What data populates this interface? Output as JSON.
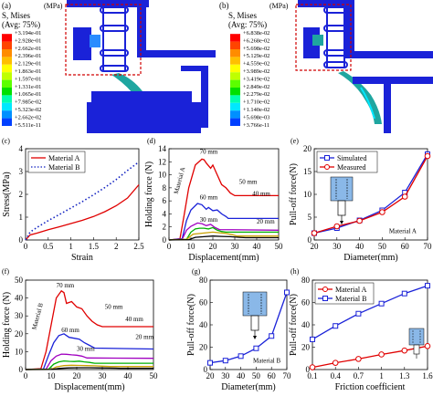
{
  "panel_labels": [
    "(a)",
    "(b)",
    "(c)",
    "(d)",
    "(e)",
    "(f)",
    "(g)",
    "(h)"
  ],
  "fea": [
    {
      "unit": "(MPa)",
      "title1": "S, Mises",
      "title2": "(Avg: 75%)",
      "levels": [
        "+3.194e-01",
        "+2.928e-01",
        "+2.662e-01",
        "+2.396e-01",
        "+2.129e-01",
        "+1.863e-01",
        "+1.597e-01",
        "+1.331e-01",
        "+1.065e-01",
        "+7.985e-02",
        "+5.323e-02",
        "+2.662e-02",
        "+5.511e-11"
      ]
    },
    {
      "unit": "(MPa)",
      "title1": "S, Mises",
      "title2": "(Avg: 75%)",
      "levels": [
        "+6.838e-02",
        "+6.268e-02",
        "+5.698e-02",
        "+5.129e-02",
        "+4.559e-02",
        "+3.989e-02",
        "+3.419e-02",
        "+2.849e-02",
        "+2.279e-02",
        "+1.710e-02",
        "+1.140e-02",
        "+5.698e-03",
        "+3.766e-11"
      ]
    }
  ],
  "colorbar_colors": [
    "#ff0000",
    "#ff4400",
    "#ff8c00",
    "#ffbf00",
    "#ffff00",
    "#bfff00",
    "#5cff00",
    "#00e000",
    "#00ffb0",
    "#00e8ff",
    "#0090ff",
    "#0040ff",
    "#0000ff"
  ],
  "colors": {
    "mat_a": "#e00000",
    "mat_b": "#1020c0",
    "mesh": "#1a22d8"
  },
  "chart_data": [
    {
      "id": "c",
      "type": "line",
      "xlabel": "Strain",
      "ylabel": "Stress(MPa)",
      "xlim": [
        0,
        2.5
      ],
      "ylim": [
        0,
        4
      ],
      "xticks": [
        "0",
        "0.5",
        "1",
        "1.5",
        "2",
        "2.5"
      ],
      "yticks": [
        "0",
        "1",
        "2",
        "3",
        "4"
      ],
      "legend": "top-left",
      "series": [
        {
          "name": "Material A",
          "style": "solid",
          "x": [
            0,
            0.1,
            0.25,
            0.5,
            0.75,
            1,
            1.25,
            1.5,
            1.75,
            2,
            2.25,
            2.5
          ],
          "y": [
            0,
            0.22,
            0.3,
            0.45,
            0.58,
            0.72,
            0.86,
            1.03,
            1.24,
            1.5,
            1.84,
            2.42
          ]
        },
        {
          "name": "Material B",
          "style": "dotted",
          "x": [
            0,
            0.1,
            0.25,
            0.5,
            0.75,
            1,
            1.25,
            1.5,
            1.75,
            2,
            2.25,
            2.5
          ],
          "y": [
            0,
            0.35,
            0.55,
            0.85,
            1.12,
            1.4,
            1.68,
            1.98,
            2.3,
            2.65,
            3.05,
            3.42
          ]
        }
      ]
    },
    {
      "id": "d",
      "type": "line",
      "xlabel": "Displacement(mm)",
      "ylabel": "Holding force (N)",
      "xlim": [
        0,
        50
      ],
      "ylim": [
        0,
        14
      ],
      "xticks": [
        "0",
        "10",
        "20",
        "30",
        "40",
        "50"
      ],
      "yticks": [
        "0",
        "2",
        "4",
        "6",
        "8",
        "10",
        "12",
        "14"
      ],
      "annotation": "Material A",
      "series": [
        {
          "name": "70 mm",
          "color": "#e00000",
          "x": [
            0,
            5,
            7,
            9,
            12,
            15,
            16,
            17,
            19,
            20,
            22,
            24,
            26,
            28,
            30,
            50
          ],
          "y": [
            0,
            0.2,
            4,
            8,
            11.5,
            12.4,
            12.3,
            11.8,
            11,
            11.5,
            10,
            8.5,
            8,
            7.2,
            6.8,
            6.8
          ]
        },
        {
          "name": "60 mm",
          "color": "#1a22d8",
          "x": [
            0,
            6,
            8,
            10,
            13,
            15,
            17,
            18,
            20,
            22,
            24,
            26,
            27,
            50
          ],
          "y": [
            0,
            0.2,
            3,
            4.6,
            5.6,
            5.4,
            4.7,
            5,
            4.5,
            4.6,
            4,
            3.6,
            3.3,
            3.3
          ]
        },
        {
          "name": "50 mm",
          "color": "#a000c0",
          "x": [
            0,
            6,
            8,
            10,
            13,
            15,
            17,
            19,
            21,
            23,
            50
          ],
          "y": [
            0,
            0.1,
            1.5,
            2.1,
            2.6,
            2.5,
            2.2,
            2.4,
            1.9,
            1.6,
            1.5
          ]
        },
        {
          "name": "40 mm",
          "color": "#00b000",
          "x": [
            0,
            8,
            10,
            12,
            14,
            16,
            18,
            20,
            22,
            24,
            26,
            50
          ],
          "y": [
            0,
            0.1,
            1.2,
            1.7,
            1.8,
            1.8,
            1.7,
            1.9,
            1.5,
            1.3,
            1.2,
            1.2
          ]
        },
        {
          "name": "30 mm",
          "color": "#c8a000",
          "x": [
            0,
            8,
            11,
            14,
            17,
            20,
            23,
            26,
            29,
            31,
            50
          ],
          "y": [
            0,
            0.1,
            0.9,
            1,
            1.1,
            1.2,
            1.1,
            1,
            0.8,
            0.6,
            0.6
          ]
        },
        {
          "name": "20 mm",
          "color": "#000000",
          "x": [
            0,
            9,
            12,
            16,
            20,
            24,
            28,
            32,
            35,
            50
          ],
          "y": [
            0,
            0.05,
            0.4,
            0.5,
            0.6,
            0.55,
            0.5,
            0.4,
            0.35,
            0.35
          ]
        }
      ]
    },
    {
      "id": "e",
      "type": "line",
      "xlabel": "Diameter(mm)",
      "ylabel": "Pull-off force(N)",
      "xlim": [
        20,
        70
      ],
      "ylim": [
        0,
        20
      ],
      "xticks": [
        "20",
        "30",
        "40",
        "50",
        "60",
        "70"
      ],
      "yticks": [
        "0",
        "5",
        "10",
        "15",
        "20"
      ],
      "legend": "top-left",
      "annotation": "Material A",
      "series": [
        {
          "name": "Simulated",
          "color": "#1a22d8",
          "marker": "square",
          "x": [
            20,
            30,
            40,
            50,
            60,
            70
          ],
          "y": [
            1.5,
            2.6,
            4.3,
            6.5,
            10.4,
            18.8
          ]
        },
        {
          "name": "Measured",
          "color": "#e00000",
          "marker": "circle",
          "x": [
            20,
            30,
            40,
            50,
            60,
            70
          ],
          "y": [
            1.5,
            3,
            4.2,
            6.1,
            9.5,
            18.4
          ]
        }
      ]
    },
    {
      "id": "f",
      "type": "line",
      "xlabel": "Displacement(mm)",
      "ylabel": "Holding force (N)",
      "xlim": [
        0,
        50
      ],
      "ylim": [
        0,
        50
      ],
      "xticks": [
        "0",
        "10",
        "20",
        "30",
        "40",
        "50"
      ],
      "yticks": [
        "0",
        "10",
        "20",
        "30",
        "40",
        "50"
      ],
      "annotation": "Material B",
      "series": [
        {
          "name": "70 mm",
          "color": "#e00000",
          "x": [
            0,
            6,
            8,
            10,
            12,
            14,
            15,
            16,
            18,
            20,
            22,
            24,
            26,
            28,
            30,
            50
          ],
          "y": [
            0,
            0.5,
            10,
            25,
            40,
            44,
            43,
            37,
            38,
            35,
            34,
            30,
            27,
            25,
            24,
            24
          ]
        },
        {
          "name": "60 mm",
          "color": "#1a22d8",
          "x": [
            0,
            7,
            9,
            11,
            13,
            15,
            17,
            19,
            21,
            23,
            25,
            27,
            50
          ],
          "y": [
            0,
            0.3,
            8,
            15,
            19,
            20,
            18,
            17.5,
            17,
            15,
            13.5,
            12,
            11.5
          ]
        },
        {
          "name": "50 mm",
          "color": "#a000c0",
          "x": [
            0,
            8,
            10,
            12,
            14,
            16,
            18,
            20,
            22,
            24,
            50
          ],
          "y": [
            0,
            0.2,
            5,
            7.5,
            8.6,
            8.5,
            8.2,
            8,
            7.5,
            6.5,
            6.3
          ]
        },
        {
          "name": "40 mm",
          "color": "#00b000",
          "x": [
            0,
            9,
            11,
            13,
            15,
            17,
            19,
            21,
            23,
            25,
            27,
            50
          ],
          "y": [
            0,
            0.2,
            3,
            4.3,
            4.8,
            4.6,
            4.5,
            4.7,
            4.3,
            4,
            3.5,
            3.5
          ]
        },
        {
          "name": "30 mm",
          "color": "#c8a000",
          "x": [
            0,
            10,
            12,
            15,
            18,
            21,
            24,
            27,
            30,
            33,
            50
          ],
          "y": [
            0,
            0.1,
            1.5,
            2.2,
            2.4,
            2.3,
            2.2,
            2.1,
            1.9,
            1.7,
            1.7
          ]
        },
        {
          "name": "20 mm",
          "color": "#000000",
          "x": [
            0,
            10,
            13,
            17,
            21,
            25,
            29,
            33,
            37,
            50
          ],
          "y": [
            0,
            0.05,
            0.6,
            0.9,
            1,
            1,
            0.9,
            0.8,
            0.7,
            0.7
          ]
        }
      ]
    },
    {
      "id": "g",
      "type": "line",
      "xlabel": "Diameter(mm)",
      "ylabel": "Pull-off force(N)",
      "xlim": [
        20,
        70
      ],
      "ylim": [
        0,
        80
      ],
      "xticks": [
        "20",
        "30",
        "40",
        "50",
        "60",
        "70"
      ],
      "yticks": [
        "0",
        "20",
        "40",
        "60",
        "80"
      ],
      "annotation": "Material B",
      "series": [
        {
          "name": "",
          "color": "#1a22d8",
          "marker": "square",
          "x": [
            20,
            30,
            40,
            50,
            60,
            70
          ],
          "y": [
            6,
            8,
            12,
            19,
            30,
            69
          ]
        }
      ]
    },
    {
      "id": "h",
      "type": "line",
      "xlabel": "Friction coefficient",
      "ylabel": "Pull-off force(N)",
      "xlim": [
        0.1,
        1.6
      ],
      "ylim": [
        0,
        80
      ],
      "xticks": [
        "0.1",
        "0.4",
        "0.7",
        "1",
        "1.3",
        "1.6"
      ],
      "yticks": [
        "0",
        "20",
        "40",
        "60",
        "80"
      ],
      "legend": "top-left",
      "series": [
        {
          "name": "Material A",
          "color": "#e00000",
          "marker": "circle",
          "x": [
            0.1,
            0.4,
            0.7,
            1,
            1.3,
            1.6
          ],
          "y": [
            2,
            6,
            9.5,
            13.5,
            17,
            21
          ]
        },
        {
          "name": "Material B",
          "color": "#1a22d8",
          "marker": "square",
          "x": [
            0.1,
            0.4,
            0.7,
            1,
            1.3,
            1.6
          ],
          "y": [
            27,
            39,
            50,
            59,
            68,
            75
          ]
        }
      ]
    }
  ]
}
